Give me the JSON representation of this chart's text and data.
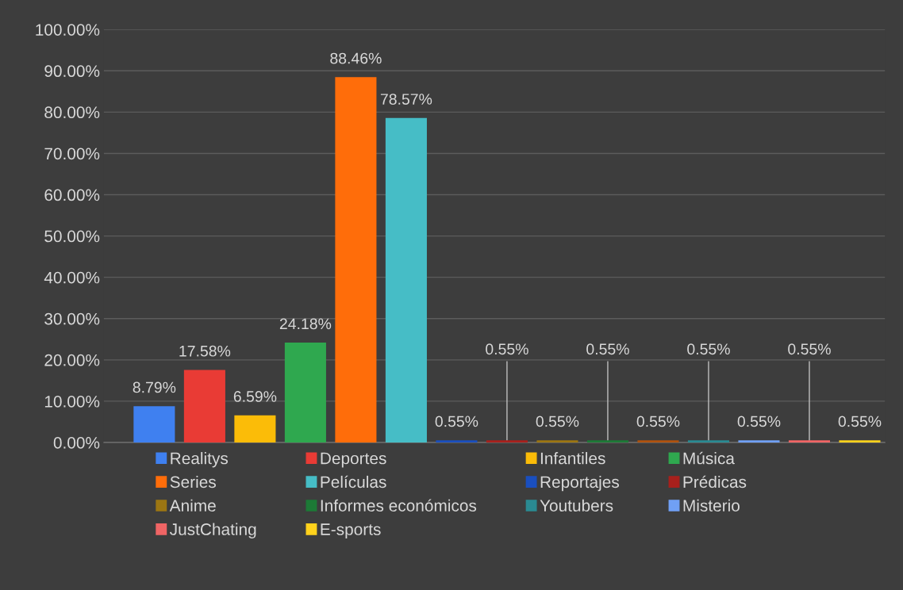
{
  "chart_data": {
    "type": "bar",
    "categories": [
      null,
      null,
      null,
      null,
      null,
      null,
      null,
      null,
      null,
      null,
      null,
      null,
      null,
      null,
      null
    ],
    "series": [
      {
        "name": "Realitys",
        "color": "#3f80f0",
        "values": [
          8.79,
          null,
          null,
          null,
          null,
          null,
          null,
          null,
          null,
          null,
          null,
          null,
          null,
          null,
          null
        ],
        "value_labels": [
          "8.79%",
          null,
          null,
          null,
          null,
          null,
          null,
          null,
          null,
          null,
          null,
          null,
          null,
          null,
          null
        ]
      },
      {
        "name": "Deportes",
        "color": "#e93b35",
        "values": [
          null,
          17.58,
          null,
          null,
          null,
          null,
          null,
          null,
          null,
          null,
          null,
          null,
          null,
          null,
          null
        ],
        "value_labels": [
          null,
          "17.58%",
          null,
          null,
          null,
          null,
          null,
          null,
          null,
          null,
          null,
          null,
          null,
          null,
          null
        ]
      },
      {
        "name": "Infantiles",
        "color": "#fbbc08",
        "values": [
          null,
          null,
          6.59,
          null,
          null,
          null,
          null,
          null,
          null,
          null,
          null,
          null,
          null,
          null,
          null
        ],
        "value_labels": [
          null,
          null,
          "6.59%",
          null,
          null,
          null,
          null,
          null,
          null,
          null,
          null,
          null,
          null,
          null,
          null
        ]
      },
      {
        "name": "Música",
        "color": "#2fa84f",
        "values": [
          null,
          null,
          null,
          24.18,
          null,
          null,
          null,
          null,
          null,
          null,
          null,
          null,
          null,
          null,
          null
        ],
        "value_labels": [
          null,
          null,
          null,
          "24.18%",
          null,
          null,
          null,
          null,
          null,
          null,
          null,
          null,
          null,
          null,
          null
        ]
      },
      {
        "name": "Series",
        "color": "#ff6d0a",
        "values": [
          null,
          null,
          null,
          null,
          88.46,
          null,
          null,
          null,
          null,
          null,
          null,
          null,
          null,
          null,
          null
        ],
        "value_labels": [
          null,
          null,
          null,
          null,
          "88.46%",
          null,
          null,
          null,
          null,
          null,
          null,
          null,
          null,
          null,
          null
        ]
      },
      {
        "name": "Películas",
        "color": "#46bdc6",
        "values": [
          null,
          null,
          null,
          null,
          null,
          78.57,
          null,
          null,
          null,
          null,
          null,
          null,
          null,
          null,
          null
        ],
        "value_labels": [
          null,
          null,
          null,
          null,
          null,
          "78.57%",
          null,
          null,
          null,
          null,
          null,
          null,
          null,
          null,
          null
        ]
      },
      {
        "name": "Reportajes",
        "color": "#1a4fbf",
        "values": [
          null,
          null,
          null,
          null,
          null,
          null,
          0.55,
          null,
          null,
          null,
          null,
          null,
          null,
          null,
          null
        ],
        "value_labels": [
          null,
          null,
          null,
          null,
          null,
          null,
          "0.55%",
          null,
          null,
          null,
          null,
          null,
          null,
          null,
          null
        ]
      },
      {
        "name": "Prédicas",
        "color": "#a8201c",
        "values": [
          null,
          null,
          null,
          null,
          null,
          null,
          null,
          0.55,
          null,
          null,
          null,
          null,
          null,
          null,
          null
        ],
        "value_labels": [
          null,
          null,
          null,
          null,
          null,
          null,
          null,
          "0.55%",
          null,
          null,
          null,
          null,
          null,
          null,
          null
        ]
      },
      {
        "name": "Anime",
        "color": "#9c7612",
        "values": [
          null,
          null,
          null,
          null,
          null,
          null,
          null,
          null,
          0.55,
          null,
          null,
          null,
          null,
          null,
          null
        ],
        "value_labels": [
          null,
          null,
          null,
          null,
          null,
          null,
          null,
          null,
          "0.55%",
          null,
          null,
          null,
          null,
          null,
          null
        ]
      },
      {
        "name": "Informes económicos",
        "color": "#1d7a36",
        "values": [
          null,
          null,
          null,
          null,
          null,
          null,
          null,
          null,
          null,
          0.55,
          null,
          null,
          null,
          null,
          null
        ],
        "value_labels": [
          null,
          null,
          null,
          null,
          null,
          null,
          null,
          null,
          null,
          "0.55%",
          null,
          null,
          null,
          null,
          null
        ]
      },
      {
        "color": "#b0520e",
        "values": [
          null,
          null,
          null,
          null,
          null,
          null,
          null,
          null,
          null,
          null,
          0.55,
          null,
          null,
          null,
          null
        ],
        "value_labels": [
          null,
          null,
          null,
          null,
          null,
          null,
          null,
          null,
          null,
          null,
          "0.55%",
          null,
          null,
          null,
          null
        ]
      },
      {
        "name": "Youtubers",
        "color": "#2a8a92",
        "values": [
          null,
          null,
          null,
          null,
          null,
          null,
          null,
          null,
          null,
          null,
          null,
          0.55,
          null,
          null,
          null
        ],
        "value_labels": [
          null,
          null,
          null,
          null,
          null,
          null,
          null,
          null,
          null,
          null,
          null,
          "0.55%",
          null,
          null,
          null
        ]
      },
      {
        "name": "Misterio",
        "color": "#70a0f5",
        "values": [
          null,
          null,
          null,
          null,
          null,
          null,
          null,
          null,
          null,
          null,
          null,
          null,
          0.55,
          null,
          null
        ],
        "value_labels": [
          null,
          null,
          null,
          null,
          null,
          null,
          null,
          null,
          null,
          null,
          null,
          null,
          "0.55%",
          null,
          null
        ]
      },
      {
        "name": "JustChating",
        "color": "#f06565",
        "values": [
          null,
          null,
          null,
          null,
          null,
          null,
          null,
          null,
          null,
          null,
          null,
          null,
          null,
          0.55,
          null
        ],
        "value_labels": [
          null,
          null,
          null,
          null,
          null,
          null,
          null,
          null,
          null,
          null,
          null,
          null,
          null,
          "0.55%",
          null
        ]
      },
      {
        "name": "E-sports",
        "color": "#ffd21c",
        "values": [
          null,
          null,
          null,
          null,
          null,
          null,
          null,
          null,
          null,
          null,
          null,
          null,
          null,
          null,
          0.55
        ],
        "value_labels": [
          null,
          null,
          null,
          null,
          null,
          null,
          null,
          null,
          null,
          null,
          null,
          null,
          null,
          null,
          "0.55%"
        ]
      }
    ],
    "ylim": [
      0,
      100
    ],
    "yticks": [
      {
        "value": 0,
        "label": "0.00%"
      },
      {
        "value": 10,
        "label": "10.00%"
      },
      {
        "value": 20,
        "label": "20.00%"
      },
      {
        "value": 30,
        "label": "30.00%"
      },
      {
        "value": 40,
        "label": "40.00%"
      },
      {
        "value": 50,
        "label": "50.00%"
      },
      {
        "value": 60,
        "label": "60.00%"
      },
      {
        "value": 70,
        "label": "70.00%"
      },
      {
        "value": 80,
        "label": "80.00%"
      },
      {
        "value": 90,
        "label": "90.00%"
      },
      {
        "value": 100,
        "label": "100.00%"
      }
    ],
    "grid": "y",
    "legend": "bottom"
  }
}
